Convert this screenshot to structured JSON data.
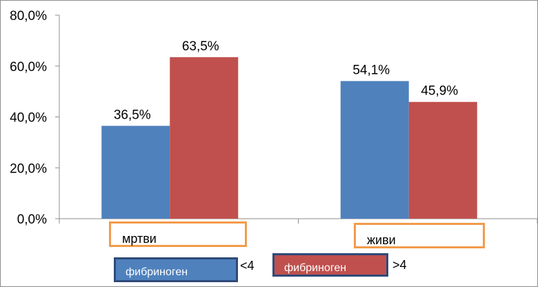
{
  "chart_data": {
    "type": "bar",
    "categories": [
      "мртви",
      "живи"
    ],
    "series": [
      {
        "name_prefix": "фибриноген",
        "name_suffix": "<4",
        "color": "#4f81bd",
        "values": [
          36.5,
          54.1
        ],
        "labels": [
          "36,5%",
          "54,1%"
        ]
      },
      {
        "name_prefix": "фибриноген",
        "name_suffix": ">4",
        "color": "#c0504d",
        "values": [
          63.5,
          45.9
        ],
        "labels": [
          "63,5%",
          "45,9%"
        ]
      }
    ],
    "ylim": [
      0,
      80
    ],
    "yticks": [
      0,
      20,
      40,
      60,
      80
    ],
    "ytick_labels": [
      "0,0%",
      "20,0%",
      "40,0%",
      "60,0%",
      "80,0%"
    ],
    "title": "",
    "xlabel": "",
    "ylabel": "",
    "legend": "bottom",
    "grid": false
  }
}
